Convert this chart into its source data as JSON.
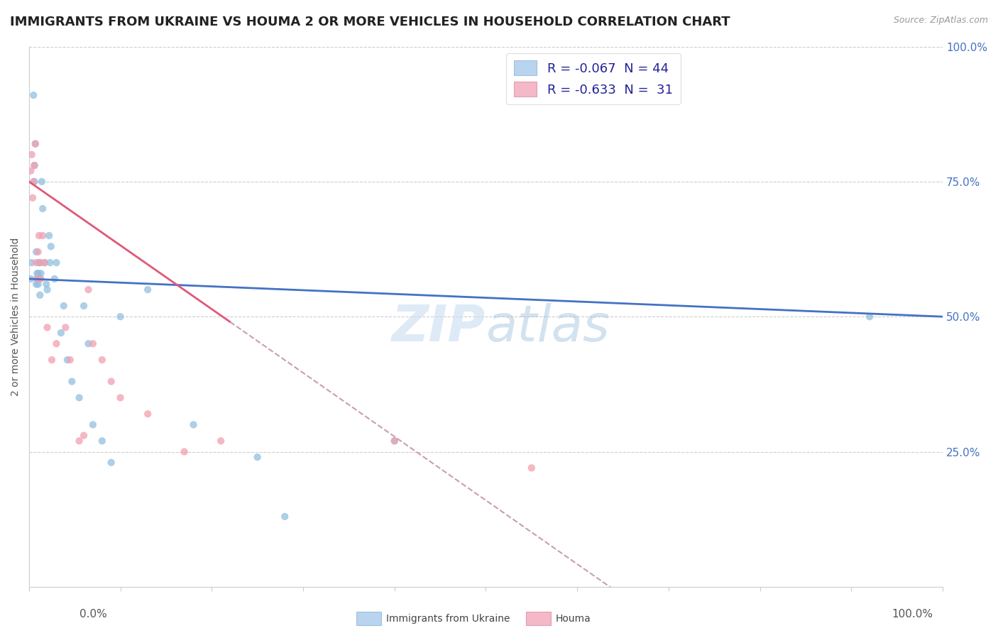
{
  "title": "IMMIGRANTS FROM UKRAINE VS HOUMA 2 OR MORE VEHICLES IN HOUSEHOLD CORRELATION CHART",
  "source": "Source: ZipAtlas.com",
  "ylabel_label": "2 or more Vehicles in Household",
  "watermark": "ZIPAtlas",
  "blue_label": "R = -0.067  N = 44",
  "pink_label": "R = -0.633  N =  31",
  "blue_scatter_x": [
    0.2,
    0.3,
    0.5,
    0.6,
    0.6,
    0.7,
    0.8,
    0.8,
    0.9,
    0.9,
    1.0,
    1.0,
    1.1,
    1.1,
    1.2,
    1.2,
    1.3,
    1.4,
    1.5,
    1.7,
    1.9,
    2.0,
    2.2,
    2.3,
    2.4,
    2.8,
    3.0,
    3.5,
    3.8,
    4.2,
    4.7,
    5.5,
    6.0,
    6.5,
    7.0,
    8.0,
    9.0,
    10.0,
    13.0,
    18.0,
    25.0,
    28.0,
    40.0,
    92.0
  ],
  "blue_scatter_y": [
    57.0,
    60.0,
    91.0,
    75.0,
    78.0,
    82.0,
    56.0,
    62.0,
    57.0,
    58.0,
    56.0,
    58.0,
    60.0,
    57.0,
    54.0,
    60.0,
    58.0,
    75.0,
    70.0,
    60.0,
    56.0,
    55.0,
    65.0,
    60.0,
    63.0,
    57.0,
    60.0,
    47.0,
    52.0,
    42.0,
    38.0,
    35.0,
    52.0,
    45.0,
    30.0,
    27.0,
    23.0,
    50.0,
    55.0,
    30.0,
    24.0,
    13.0,
    27.0,
    50.0
  ],
  "pink_scatter_x": [
    0.2,
    0.3,
    0.4,
    0.5,
    0.6,
    0.7,
    0.8,
    0.9,
    1.0,
    1.1,
    1.2,
    1.3,
    1.5,
    1.7,
    2.0,
    2.5,
    3.0,
    4.0,
    4.5,
    5.5,
    6.0,
    6.5,
    7.0,
    8.0,
    9.0,
    10.0,
    13.0,
    17.0,
    21.0,
    40.0,
    55.0
  ],
  "pink_scatter_y": [
    77.0,
    80.0,
    72.0,
    75.0,
    78.0,
    82.0,
    60.0,
    57.0,
    62.0,
    65.0,
    60.0,
    57.0,
    65.0,
    60.0,
    48.0,
    42.0,
    45.0,
    48.0,
    42.0,
    27.0,
    28.0,
    55.0,
    45.0,
    42.0,
    38.0,
    35.0,
    32.0,
    25.0,
    27.0,
    27.0,
    22.0
  ],
  "blue_line_x0": 0.0,
  "blue_line_x1": 100.0,
  "blue_line_y0": 57.0,
  "blue_line_y1": 50.0,
  "pink_line_solid_x0": 0.0,
  "pink_line_solid_x1": 22.0,
  "pink_line_y0": 75.0,
  "pink_line_slope": -1.18,
  "xmin": 0.0,
  "xmax": 100.0,
  "ymin": 0.0,
  "ymax": 100.0,
  "scatter_size": 55,
  "scatter_alpha": 0.75,
  "blue_dot_color": "#92C0E0",
  "pink_dot_color": "#F0A0B0",
  "blue_line_color": "#4472C4",
  "pink_line_color": "#E05878",
  "dashed_line_color": "#C8A0A8",
  "grid_color": "#CCCCCC",
  "background_color": "#ffffff",
  "title_fontsize": 13,
  "axis_label_fontsize": 10,
  "tick_fontsize": 11,
  "legend_fontsize": 13
}
